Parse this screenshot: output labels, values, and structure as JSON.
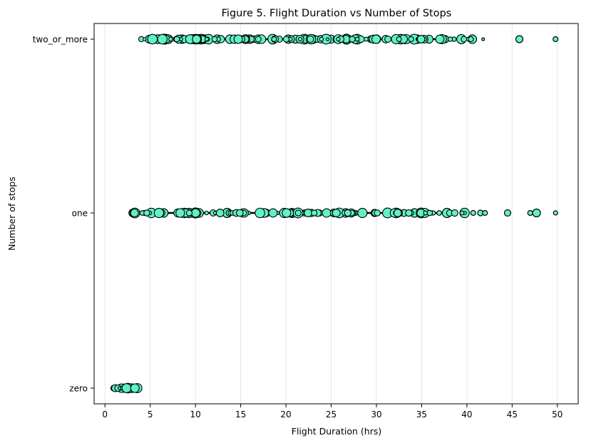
{
  "chart_data": {
    "type": "scatter",
    "title": "Figure 5. Flight Duration vs Number of Stops",
    "xlabel": "Flight Duration (hrs)",
    "ylabel": "Number of stops",
    "xlim": [
      -1.2,
      52.3
    ],
    "x_ticks": [
      0,
      5,
      10,
      15,
      20,
      25,
      30,
      35,
      40,
      45,
      50
    ],
    "categories": [
      "two_or_more",
      "one",
      "zero"
    ],
    "grid": "vertical",
    "marker_fill": "#5ef2c6",
    "marker_edge": "#000000",
    "series": [
      {
        "category": "two_or_more",
        "x_range": [
          4.0,
          49.8
        ],
        "points": [
          {
            "x": 4.0,
            "s": 2
          },
          {
            "x": 5.8,
            "s": 6
          },
          {
            "x": 6.6,
            "s": 7
          },
          {
            "x": 7.0,
            "s": 6
          },
          {
            "x": 8.5,
            "s": 6
          },
          {
            "x": 11.0,
            "s": 6
          },
          {
            "x": 12.4,
            "s": 6
          },
          {
            "x": 13.8,
            "s": 6
          },
          {
            "x": 16.0,
            "s": 6
          },
          {
            "x": 18.5,
            "s": 6
          },
          {
            "x": 21.5,
            "s": 5
          },
          {
            "x": 23.0,
            "s": 6
          },
          {
            "x": 26.7,
            "s": 7
          },
          {
            "x": 28.0,
            "s": 5
          },
          {
            "x": 30.0,
            "s": 6
          },
          {
            "x": 34.5,
            "s": 6
          },
          {
            "x": 37.6,
            "s": 5
          },
          {
            "x": 40.6,
            "s": 6
          },
          {
            "x": 41.8,
            "s": 2
          },
          {
            "x": 45.8,
            "s": 5
          },
          {
            "x": 49.8,
            "s": 3.5
          }
        ]
      },
      {
        "category": "one",
        "x_range": [
          3.0,
          49.8
        ],
        "points": [
          {
            "x": 3.0,
            "s": 3.5
          },
          {
            "x": 5.3,
            "s": 5
          },
          {
            "x": 6.5,
            "s": 6
          },
          {
            "x": 10.0,
            "s": 7
          },
          {
            "x": 13.5,
            "s": 6.5
          },
          {
            "x": 17.3,
            "s": 6
          },
          {
            "x": 22.8,
            "s": 5
          },
          {
            "x": 26.6,
            "s": 6
          },
          {
            "x": 29.8,
            "s": 5
          },
          {
            "x": 32.0,
            "s": 5
          },
          {
            "x": 34.2,
            "s": 6
          },
          {
            "x": 35.5,
            "s": 5
          },
          {
            "x": 37.8,
            "s": 6.5
          },
          {
            "x": 40.7,
            "s": 3.5
          },
          {
            "x": 41.5,
            "s": 4
          },
          {
            "x": 42.0,
            "s": 3.5
          },
          {
            "x": 44.5,
            "s": 4.5
          },
          {
            "x": 47.0,
            "s": 3.5
          },
          {
            "x": 47.7,
            "s": 5.5
          },
          {
            "x": 49.8,
            "s": 3
          }
        ]
      },
      {
        "category": "zero",
        "x_range": [
          0.8,
          3.6
        ],
        "points": [
          {
            "x": 0.9,
            "s": 2.5
          },
          {
            "x": 1.3,
            "s": 3
          },
          {
            "x": 1.8,
            "s": 4
          },
          {
            "x": 2.1,
            "s": 4.5
          },
          {
            "x": 2.5,
            "s": 5
          },
          {
            "x": 2.9,
            "s": 4
          },
          {
            "x": 3.5,
            "s": 4
          }
        ]
      }
    ]
  }
}
